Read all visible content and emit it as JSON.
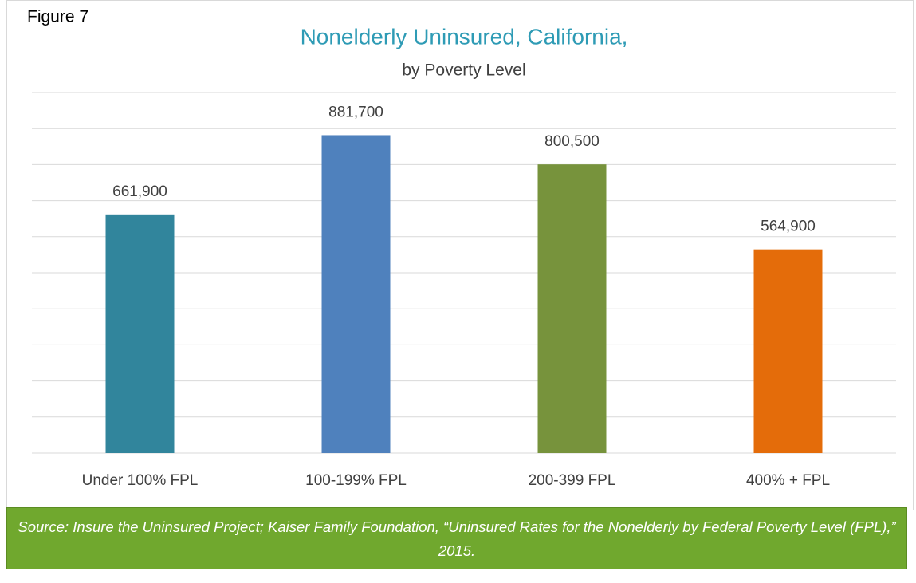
{
  "figure_label": "Figure 7",
  "chart_data": {
    "type": "bar",
    "title": "Nonelderly Uninsured, California,",
    "subtitle": "by Poverty Level",
    "categories": [
      "Under 100% FPL",
      "100-199% FPL",
      "200-399 FPL",
      "400% + FPL"
    ],
    "values": [
      661900,
      881700,
      800500,
      564900
    ],
    "value_labels": [
      "661,900",
      "881,700",
      "800,500",
      "564,900"
    ],
    "colors": [
      "#31859c",
      "#4f81bd",
      "#77933c",
      "#e46c0a"
    ],
    "ylim": [
      0,
      1000000
    ],
    "yticks": [
      0,
      100000,
      200000,
      300000,
      400000,
      500000,
      600000,
      700000,
      800000,
      900000,
      1000000
    ],
    "grid": true
  },
  "source": "Source: Insure the Uninsured Project; Kaiser Family Foundation, “Uninsured Rates for the Nonelderly by Federal Poverty Level (FPL),” 2015."
}
